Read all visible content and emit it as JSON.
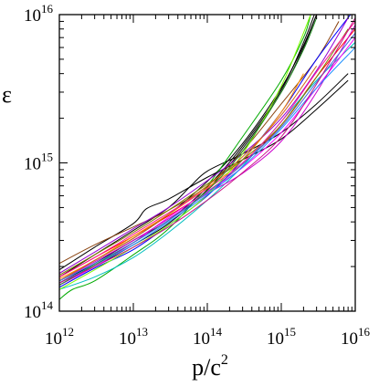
{
  "chart_data": {
    "type": "line",
    "title": "",
    "xlabel": "p/c",
    "xlabel_sup": "2",
    "ylabel": "ε",
    "x_scale": "log",
    "y_scale": "log",
    "xlim": [
      1000000000000.0,
      1e+16
    ],
    "ylim": [
      100000000000000.0,
      1e+16
    ],
    "grid": false,
    "legend": "none",
    "x_ticks": [
      {
        "value": 1000000000000.0,
        "base": "10",
        "exp": "12"
      },
      {
        "value": 10000000000000.0,
        "base": "10",
        "exp": "13"
      },
      {
        "value": 100000000000000.0,
        "base": "10",
        "exp": "14"
      },
      {
        "value": 1000000000000000.0,
        "base": "10",
        "exp": "15"
      },
      {
        "value": 1e+16,
        "base": "10",
        "exp": "16"
      }
    ],
    "y_ticks": [
      {
        "value": 100000000000000.0,
        "base": "10",
        "exp": "14"
      },
      {
        "value": 1000000000000000.0,
        "base": "10",
        "exp": "15"
      },
      {
        "value": 1e+16,
        "base": "10",
        "exp": "16"
      }
    ],
    "series": [
      {
        "color": "#000000",
        "x": [
          1000000000000.0,
          3000000000000.0,
          10000000000000.0,
          30000000000000.0,
          100000000000000.0,
          300000000000000.0,
          1000000000000000.0,
          2000000000000000.0,
          3000000000000000.0
        ],
        "y": [
          150000000000000.0,
          200000000000000.0,
          280000000000000.0,
          390000000000000.0,
          660000000000000.0,
          1250000000000000.0,
          3000000000000000.0,
          6000000000000000.0,
          1e+16
        ]
      },
      {
        "color": "#000000",
        "x": [
          1000000000000.0,
          3000000000000.0,
          10000000000000.0,
          30000000000000.0,
          100000000000000.0,
          300000000000000.0,
          1000000000000000.0,
          2000000000000000.0,
          3000000000000000.0
        ],
        "y": [
          160000000000000.0,
          220000000000000.0,
          310000000000000.0,
          450000000000000.0,
          750000000000000.0,
          1350000000000000.0,
          3200000000000000.0,
          6200000000000000.0,
          1e+16
        ]
      },
      {
        "color": "#000000",
        "x": [
          1000000000000.0,
          3000000000000.0,
          10000000000000.0,
          15000000000000.0,
          30000000000000.0,
          100000000000000.0,
          300000000000000.0,
          1000000000000000.0,
          3000000000000000.0,
          8000000000000000.0
        ],
        "y": [
          190000000000000.0,
          270000000000000.0,
          390000000000000.0,
          490000000000000.0,
          570000000000000.0,
          800000000000000.0,
          1050000000000000.0,
          1450000000000000.0,
          2300000000000000.0,
          3600000000000000.0
        ]
      },
      {
        "color": "#000000",
        "x": [
          1000000000000.0,
          3000000000000.0,
          10000000000000.0,
          30000000000000.0,
          60000000000000.0,
          100000000000000.0,
          300000000000000.0,
          1000000000000000.0,
          3000000000000000.0,
          8000000000000000.0
        ],
        "y": [
          170000000000000.0,
          240000000000000.0,
          350000000000000.0,
          500000000000000.0,
          700000000000000.0,
          880000000000000.0,
          1150000000000000.0,
          1600000000000000.0,
          2500000000000000.0,
          4000000000000000.0
        ]
      },
      {
        "color": "#000000",
        "x": [
          1000000000000.0,
          3000000000000.0,
          10000000000000.0,
          30000000000000.0,
          100000000000000.0,
          300000000000000.0,
          1000000000000000.0,
          2000000000000000.0,
          2800000000000000.0
        ],
        "y": [
          155000000000000.0,
          210000000000000.0,
          300000000000000.0,
          410000000000000.0,
          690000000000000.0,
          1300000000000000.0,
          3100000000000000.0,
          6500000000000000.0,
          1e+16
        ]
      },
      {
        "color": "#8b4513",
        "x": [
          1000000000000.0,
          3000000000000.0,
          10000000000000.0,
          30000000000000.0,
          100000000000000.0,
          300000000000000.0,
          1000000000000000.0,
          3000000000000000.0,
          6000000000000000.0
        ],
        "y": [
          210000000000000.0,
          280000000000000.0,
          370000000000000.0,
          480000000000000.0,
          700000000000000.0,
          1200000000000000.0,
          2500000000000000.0,
          5000000000000000.0,
          9000000000000000.0
        ]
      },
      {
        "color": "#ff0000",
        "x": [
          1000000000000.0,
          3000000000000.0,
          10000000000000.0,
          30000000000000.0,
          100000000000000.0,
          300000000000000.0,
          1000000000000000.0,
          3000000000000000.0,
          1e+16
        ],
        "y": [
          170000000000000.0,
          230000000000000.0,
          320000000000000.0,
          440000000000000.0,
          640000000000000.0,
          980000000000000.0,
          1800000000000000.0,
          3800000000000000.0,
          8000000000000000.0
        ]
      },
      {
        "color": "#00aa00",
        "x": [
          1000000000000.0,
          1500000000000.0,
          3000000000000.0,
          10000000000000.0,
          30000000000000.0,
          100000000000000.0,
          300000000000000.0,
          1000000000000000.0,
          2000000000000000.0,
          2500000000000000.0
        ],
        "y": [
          120000000000000.0,
          140000000000000.0,
          160000000000000.0,
          240000000000000.0,
          360000000000000.0,
          700000000000000.0,
          1500000000000000.0,
          3600000000000000.0,
          7000000000000000.0,
          1e+16
        ]
      },
      {
        "color": "#0000ff",
        "x": [
          1000000000000.0,
          3000000000000.0,
          10000000000000.0,
          30000000000000.0,
          100000000000000.0,
          300000000000000.0,
          1000000000000000.0,
          3000000000000000.0,
          1e+16
        ],
        "y": [
          145000000000000.0,
          195000000000000.0,
          260000000000000.0,
          380000000000000.0,
          600000000000000.0,
          1050000000000000.0,
          2200000000000000.0,
          5000000000000000.0,
          1.1e+16
        ]
      },
      {
        "color": "#00bfbf",
        "x": [
          1000000000000.0,
          3000000000000.0,
          10000000000000.0,
          30000000000000.0,
          100000000000000.0,
          300000000000000.0,
          1000000000000000.0,
          3000000000000000.0,
          1e+16
        ],
        "y": [
          140000000000000.0,
          170000000000000.0,
          230000000000000.0,
          340000000000000.0,
          560000000000000.0,
          950000000000000.0,
          1900000000000000.0,
          3600000000000000.0,
          6500000000000000.0
        ]
      },
      {
        "color": "#ff00ff",
        "x": [
          1000000000000.0,
          3000000000000.0,
          10000000000000.0,
          30000000000000.0,
          100000000000000.0,
          300000000000000.0,
          1000000000000000.0,
          3000000000000000.0,
          1e+16
        ],
        "y": [
          150000000000000.0,
          200000000000000.0,
          290000000000000.0,
          430000000000000.0,
          640000000000000.0,
          930000000000000.0,
          1600000000000000.0,
          3200000000000000.0,
          7000000000000000.0
        ]
      },
      {
        "color": "#ff8c00",
        "x": [
          1000000000000.0,
          3000000000000.0,
          10000000000000.0,
          30000000000000.0,
          100000000000000.0,
          300000000000000.0,
          1000000000000000.0,
          2000000000000000.0
        ],
        "y": [
          165000000000000.0,
          220000000000000.0,
          320000000000000.0,
          450000000000000.0,
          680000000000000.0,
          1050000000000000.0,
          2200000000000000.0,
          4000000000000000.0
        ]
      },
      {
        "color": "#9400d3",
        "x": [
          1000000000000.0,
          3000000000000.0,
          10000000000000.0,
          30000000000000.0,
          100000000000000.0,
          300000000000000.0,
          1000000000000000.0,
          3000000000000000.0,
          8000000000000000.0
        ],
        "y": [
          180000000000000.0,
          250000000000000.0,
          360000000000000.0,
          500000000000000.0,
          760000000000000.0,
          1150000000000000.0,
          2000000000000000.0,
          4200000000000000.0,
          9500000000000000.0
        ]
      },
      {
        "color": "#cc00cc",
        "x": [
          1000000000000.0,
          3000000000000.0,
          10000000000000.0,
          30000000000000.0,
          100000000000000.0,
          300000000000000.0,
          1000000000000000.0,
          3000000000000000.0,
          1e+16
        ],
        "y": [
          160000000000000.0,
          215000000000000.0,
          300000000000000.0,
          420000000000000.0,
          620000000000000.0,
          850000000000000.0,
          1400000000000000.0,
          3000000000000000.0,
          8500000000000000.0
        ]
      },
      {
        "color": "#7fff00",
        "x": [
          1000000000000.0,
          3000000000000.0,
          10000000000000.0,
          30000000000000.0,
          100000000000000.0,
          300000000000000.0,
          1000000000000000.0,
          2500000000000000.0
        ],
        "y": [
          140000000000000.0,
          190000000000000.0,
          270000000000000.0,
          380000000000000.0,
          610000000000000.0,
          1150000000000000.0,
          3300000000000000.0,
          1e+16
        ]
      },
      {
        "color": "#1e90ff",
        "x": [
          1000000000000.0,
          3000000000000.0,
          10000000000000.0,
          30000000000000.0,
          100000000000000.0,
          300000000000000.0,
          1000000000000000.0,
          3000000000000000.0,
          1e+16
        ],
        "y": [
          155000000000000.0,
          205000000000000.0,
          280000000000000.0,
          400000000000000.0,
          610000000000000.0,
          940000000000000.0,
          1700000000000000.0,
          3200000000000000.0,
          6000000000000000.0
        ]
      },
      {
        "color": "#808000",
        "x": [
          1000000000000.0,
          3000000000000.0,
          10000000000000.0,
          30000000000000.0,
          100000000000000.0,
          300000000000000.0,
          1000000000000000.0,
          3000000000000000.0,
          8000000000000000.0
        ],
        "y": [
          175000000000000.0,
          240000000000000.0,
          340000000000000.0,
          480000000000000.0,
          720000000000000.0,
          1050000000000000.0,
          1800000000000000.0,
          3800000000000000.0,
          8000000000000000.0
        ]
      },
      {
        "color": "#d2691e",
        "x": [
          1000000000000.0,
          3000000000000.0,
          10000000000000.0,
          30000000000000.0,
          100000000000000.0,
          300000000000000.0,
          1000000000000000.0,
          3000000000000000.0
        ],
        "y": [
          160000000000000.0,
          220000000000000.0,
          310000000000000.0,
          450000000000000.0,
          700000000000000.0,
          1100000000000000.0,
          2100000000000000.0,
          4500000000000000.0
        ]
      },
      {
        "color": "#ff1493",
        "x": [
          1000000000000.0,
          3000000000000.0,
          10000000000000.0,
          30000000000000.0,
          100000000000000.0,
          300000000000000.0,
          1000000000000000.0,
          3000000000000000.0,
          1e+16
        ],
        "y": [
          170000000000000.0,
          230000000000000.0,
          330000000000000.0,
          460000000000000.0,
          670000000000000.0,
          1000000000000000.0,
          1900000000000000.0,
          4100000000000000.0,
          9000000000000000.0
        ]
      },
      {
        "color": "#228b22",
        "x": [
          1000000000000.0,
          3000000000000.0,
          10000000000000.0,
          30000000000000.0,
          100000000000000.0,
          300000000000000.0,
          1000000000000000.0,
          2000000000000000.0,
          3000000000000000.0
        ],
        "y": [
          150000000000000.0,
          205000000000000.0,
          290000000000000.0,
          410000000000000.0,
          650000000000000.0,
          1200000000000000.0,
          3000000000000000.0,
          5800000000000000.0,
          9500000000000000.0
        ]
      },
      {
        "color": "#4169e1",
        "x": [
          1000000000000.0,
          3000000000000.0,
          10000000000000.0,
          30000000000000.0,
          100000000000000.0,
          300000000000000.0,
          1000000000000000.0,
          3000000000000000.0,
          1e+16
        ],
        "y": [
          160000000000000.0,
          210000000000000.0,
          290000000000000.0,
          410000000000000.0,
          630000000000000.0,
          980000000000000.0,
          1750000000000000.0,
          3500000000000000.0,
          7500000000000000.0
        ]
      },
      {
        "color": "#c71585",
        "x": [
          1000000000000.0,
          3000000000000.0,
          10000000000000.0,
          30000000000000.0,
          100000000000000.0,
          300000000000000.0,
          1000000000000000.0,
          3000000000000000.0,
          1e+16
        ],
        "y": [
          155000000000000.0,
          200000000000000.0,
          270000000000000.0,
          370000000000000.0,
          560000000000000.0,
          860000000000000.0,
          1500000000000000.0,
          3400000000000000.0,
          9500000000000000.0
        ]
      }
    ]
  }
}
